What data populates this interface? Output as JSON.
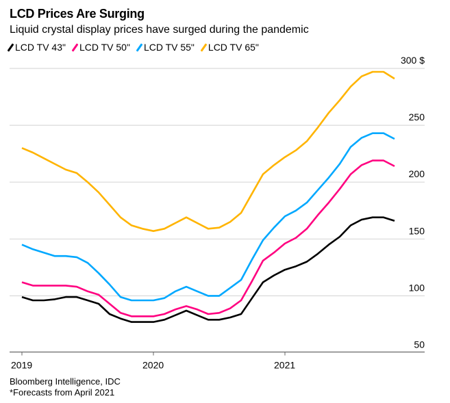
{
  "chart_data": {
    "type": "line",
    "title": "LCD Prices Are Surging",
    "subtitle": "Liquid crystal display prices have surged during the pandemic",
    "x": [
      "2019-01",
      "2019-02",
      "2019-03",
      "2019-04",
      "2019-05",
      "2019-06",
      "2019-07",
      "2019-08",
      "2019-09",
      "2019-10",
      "2019-11",
      "2019-12",
      "2020-01",
      "2020-02",
      "2020-03",
      "2020-04",
      "2020-05",
      "2020-06",
      "2020-07",
      "2020-08",
      "2020-09",
      "2020-10",
      "2020-11",
      "2020-12",
      "2021-01",
      "2021-02",
      "2021-03",
      "2021-04",
      "2021-05",
      "2021-06",
      "2021-07",
      "2021-08",
      "2021-09",
      "2021-10",
      "2021-11"
    ],
    "x_ticks": [
      "2019",
      "2020",
      "2021"
    ],
    "y_ticks": [
      "300 $",
      "250",
      "200",
      "150",
      "100",
      "50"
    ],
    "y_tick_values": [
      300,
      250,
      200,
      150,
      100,
      50
    ],
    "ylim": [
      50,
      300
    ],
    "grid": true,
    "legend_position": "top-left",
    "series": [
      {
        "name": "LCD TV 43\"",
        "color": "#000000",
        "values": [
          99,
          96,
          96,
          97,
          99,
          99,
          96,
          93,
          84,
          80,
          77,
          77,
          77,
          79,
          83,
          87,
          83,
          79,
          79,
          81,
          84,
          98,
          112,
          118,
          123,
          126,
          130,
          137,
          145,
          152,
          162,
          167,
          169,
          169,
          166
        ]
      },
      {
        "name": "LCD TV 50\"",
        "color": "#ff0080",
        "values": [
          112,
          109,
          109,
          109,
          109,
          108,
          104,
          101,
          93,
          85,
          82,
          82,
          82,
          84,
          88,
          91,
          88,
          84,
          85,
          89,
          96,
          113,
          131,
          138,
          146,
          151,
          159,
          171,
          182,
          194,
          207,
          215,
          219,
          219,
          214
        ]
      },
      {
        "name": "LCD TV 55\"",
        "color": "#00a8ff",
        "values": [
          145,
          141,
          138,
          135,
          135,
          134,
          129,
          120,
          110,
          99,
          96,
          96,
          96,
          98,
          104,
          108,
          104,
          100,
          100,
          107,
          114,
          132,
          149,
          160,
          170,
          175,
          182,
          193,
          204,
          216,
          231,
          239,
          243,
          243,
          238
        ]
      },
      {
        "name": "LCD TV 65\"",
        "color": "#ffb400",
        "values": [
          230,
          226,
          221,
          216,
          211,
          208,
          200,
          191,
          180,
          169,
          162,
          159,
          157,
          159,
          164,
          169,
          164,
          159,
          160,
          165,
          173,
          190,
          207,
          215,
          222,
          228,
          236,
          248,
          261,
          272,
          284,
          293,
          297,
          297,
          291
        ]
      }
    ],
    "source": "Bloomberg Intelligence, IDC",
    "note": "*Forecasts from April 2021"
  }
}
